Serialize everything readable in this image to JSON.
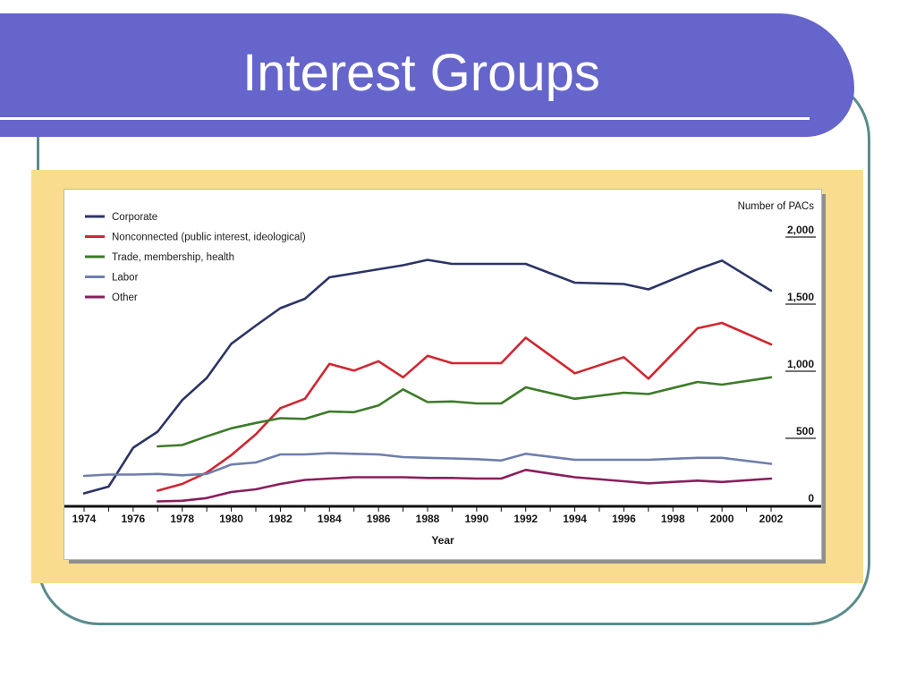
{
  "slide": {
    "title": "Interest Groups"
  },
  "theme": {
    "accent": "#6565cc",
    "frame": "#5a8c8c",
    "panel": "#f9dc8d"
  },
  "chart_data": {
    "type": "line",
    "xlabel": "Year",
    "ylabel": "Number of PACs",
    "xlim": [
      1974,
      2002
    ],
    "ylim": [
      0,
      2000
    ],
    "x_ticks": [
      1974,
      1976,
      1978,
      1980,
      1982,
      1984,
      1986,
      1988,
      1990,
      1992,
      1994,
      1996,
      1998,
      2000,
      2002
    ],
    "y_ticks": [
      {
        "value": 2000,
        "label": "2,000"
      },
      {
        "value": 1500,
        "label": "1,500"
      },
      {
        "value": 1000,
        "label": "1,000"
      },
      {
        "value": 500,
        "label": "500"
      },
      {
        "value": 0,
        "label": "0"
      }
    ],
    "grid": false,
    "legend_position": "top-left",
    "y_axis_position": "right",
    "series": [
      {
        "name": "Corporate",
        "color": "#2c3466",
        "x": [
          1974,
          1975,
          1976,
          1977,
          1978,
          1979,
          1980,
          1981,
          1982,
          1983,
          1984,
          1985,
          1986,
          1987,
          1988,
          1989,
          1990,
          1991,
          1992,
          1994,
          1996,
          1997,
          1999,
          2000,
          2002
        ],
        "y": [
          90,
          140,
          430,
          550,
          785,
          950,
          1205,
          1340,
          1470,
          1540,
          1700,
          1730,
          1760,
          1790,
          1830,
          1800,
          1800,
          1800,
          1800,
          1660,
          1650,
          1610,
          1760,
          1825,
          1600
        ]
      },
      {
        "name": "Nonconnected (public interest, ideological)",
        "color": "#d1262f",
        "x": [
          1977,
          1978,
          1979,
          1980,
          1981,
          1982,
          1983,
          1984,
          1985,
          1986,
          1987,
          1988,
          1989,
          1990,
          1991,
          1992,
          1994,
          1996,
          1997,
          1999,
          2000,
          2002
        ],
        "y": [
          110,
          160,
          245,
          375,
          530,
          725,
          795,
          1055,
          1005,
          1075,
          955,
          1115,
          1060,
          1060,
          1060,
          1250,
          985,
          1105,
          945,
          1320,
          1360,
          1200
        ]
      },
      {
        "name": "Trade, membership, health",
        "color": "#3c7b29",
        "x": [
          1977,
          1978,
          1979,
          1980,
          1981,
          1982,
          1983,
          1984,
          1985,
          1986,
          1987,
          1988,
          1989,
          1990,
          1991,
          1992,
          1994,
          1996,
          1997,
          1999,
          2000,
          2002
        ],
        "y": [
          440,
          450,
          515,
          575,
          615,
          650,
          645,
          700,
          695,
          745,
          865,
          770,
          775,
          760,
          760,
          880,
          795,
          840,
          830,
          920,
          900,
          955
        ]
      },
      {
        "name": "Labor",
        "color": "#6e7fac",
        "x": [
          1974,
          1975,
          1976,
          1977,
          1978,
          1979,
          1980,
          1981,
          1982,
          1983,
          1984,
          1985,
          1986,
          1987,
          1988,
          1989,
          1990,
          1991,
          1992,
          1994,
          1996,
          1997,
          1999,
          2000,
          2002
        ],
        "y": [
          220,
          230,
          230,
          235,
          225,
          235,
          305,
          320,
          380,
          380,
          390,
          385,
          380,
          360,
          355,
          350,
          345,
          335,
          385,
          340,
          340,
          340,
          355,
          355,
          310
        ]
      },
      {
        "name": "Other",
        "color": "#8a1e5d",
        "x": [
          1977,
          1978,
          1979,
          1980,
          1981,
          1982,
          1983,
          1984,
          1985,
          1986,
          1987,
          1988,
          1989,
          1990,
          1991,
          1992,
          1994,
          1996,
          1997,
          1999,
          2000,
          2002
        ],
        "y": [
          30,
          35,
          55,
          100,
          120,
          160,
          190,
          200,
          210,
          210,
          210,
          205,
          205,
          200,
          200,
          265,
          210,
          180,
          165,
          185,
          175,
          200
        ]
      }
    ]
  }
}
